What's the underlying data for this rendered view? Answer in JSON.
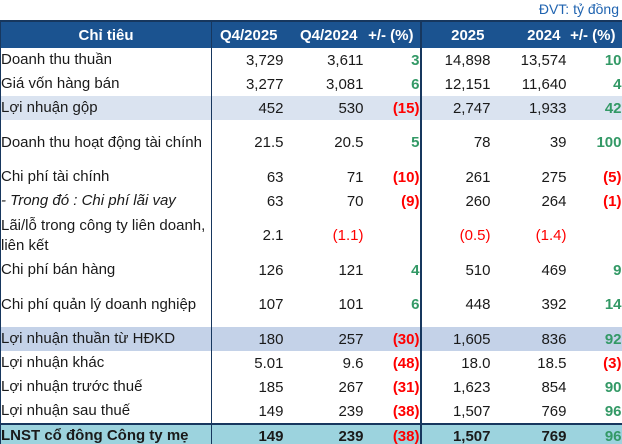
{
  "unit_note": "ĐVT: tỷ đồng",
  "colors": {
    "header_bg": "#1B5390",
    "border": "#17375E",
    "note_text": "#1F63B0",
    "highlight1": "#DAE3F0",
    "highlight2": "#C4D2E8",
    "total_bg": "#9CD3DE",
    "positive": "#339966",
    "negative": "#FF0000"
  },
  "table": {
    "columns": [
      "Chỉ tiêu",
      "Q4/2025",
      "Q4/2024",
      "+/- (%)",
      "2025",
      "2024",
      "+/- (%)"
    ],
    "rows": [
      {
        "label": "Doanh thu thuần",
        "values": [
          "3,729",
          "3,611",
          "3",
          "14,898",
          "13,574",
          "10"
        ],
        "value_colors": [
          "k",
          "k",
          "g",
          "k",
          "k",
          "g"
        ],
        "style": "",
        "tall": false
      },
      {
        "label": "Giá vốn hàng bán",
        "values": [
          "3,277",
          "3,081",
          "6",
          "12,151",
          "11,640",
          "4"
        ],
        "value_colors": [
          "k",
          "k",
          "g",
          "k",
          "k",
          "g"
        ],
        "style": "",
        "tall": false
      },
      {
        "label": "Lợi nhuận gộp",
        "values": [
          "452",
          "530",
          "(15)",
          "2,747",
          "1,933",
          "42"
        ],
        "value_colors": [
          "k",
          "k",
          "r",
          "k",
          "k",
          "g"
        ],
        "style": "highlight1",
        "tall": false
      },
      {
        "label": "Doanh thu hoạt động tài chính",
        "values": [
          "21.5",
          "20.5",
          "5",
          "78",
          "39",
          "100"
        ],
        "value_colors": [
          "k",
          "k",
          "g",
          "k",
          "k",
          "g"
        ],
        "style": "",
        "tall": true
      },
      {
        "label": "Chi phí tài chính",
        "values": [
          "63",
          "71",
          "(10)",
          "261",
          "275",
          "(5)"
        ],
        "value_colors": [
          "k",
          "k",
          "r",
          "k",
          "k",
          "r"
        ],
        "style": "",
        "tall": false
      },
      {
        "label": "- Trong đó : Chi phí lãi vay",
        "values": [
          "63",
          "70",
          "(9)",
          "260",
          "264",
          "(1)"
        ],
        "value_colors": [
          "k",
          "k",
          "r",
          "k",
          "k",
          "r"
        ],
        "style": "italic",
        "tall": false
      },
      {
        "label": "Lãi/lỗ trong công ty liên doanh, liên kết",
        "values": [
          "2.1",
          "(1.1)",
          "",
          "(0.5)",
          "(1.4)",
          ""
        ],
        "value_colors": [
          "k",
          "r",
          "",
          "r",
          "r",
          ""
        ],
        "style": "",
        "tall": true
      },
      {
        "label": "Chi phí bán hàng",
        "values": [
          "126",
          "121",
          "4",
          "510",
          "469",
          "9"
        ],
        "value_colors": [
          "k",
          "k",
          "g",
          "k",
          "k",
          "g"
        ],
        "style": "",
        "tall": false
      },
      {
        "label": "Chi phí quản lý doanh nghiệp",
        "values": [
          "107",
          "101",
          "6",
          "448",
          "392",
          "14"
        ],
        "value_colors": [
          "k",
          "k",
          "g",
          "k",
          "k",
          "g"
        ],
        "style": "",
        "tall": true
      },
      {
        "label": "Lợi nhuận thuần từ HĐKD",
        "values": [
          "180",
          "257",
          "(30)",
          "1,605",
          "836",
          "92"
        ],
        "value_colors": [
          "k",
          "k",
          "r",
          "k",
          "k",
          "g"
        ],
        "style": "highlight2",
        "tall": false
      },
      {
        "label": "Lợi nhuận khác",
        "values": [
          "5.01",
          "9.6",
          "(48)",
          "18.0",
          "18.5",
          "(3)"
        ],
        "value_colors": [
          "k",
          "k",
          "r",
          "k",
          "k",
          "r"
        ],
        "style": "",
        "tall": false
      },
      {
        "label": "Lợi nhuận trước thuế",
        "values": [
          "185",
          "267",
          "(31)",
          "1,623",
          "854",
          "90"
        ],
        "value_colors": [
          "k",
          "k",
          "r",
          "k",
          "k",
          "g"
        ],
        "style": "",
        "tall": false
      },
      {
        "label": "Lợi nhuận sau thuế",
        "values": [
          "149",
          "239",
          "(38)",
          "1,507",
          "769",
          "96"
        ],
        "value_colors": [
          "k",
          "k",
          "r",
          "k",
          "k",
          "g"
        ],
        "style": "",
        "tall": false
      },
      {
        "label": "LNST cổ đông Công ty mẹ",
        "values": [
          "149",
          "239",
          "(38)",
          "1,507",
          "769",
          "96"
        ],
        "value_colors": [
          "k",
          "k",
          "r",
          "k",
          "k",
          "g"
        ],
        "style": "total",
        "tall": false
      }
    ]
  }
}
